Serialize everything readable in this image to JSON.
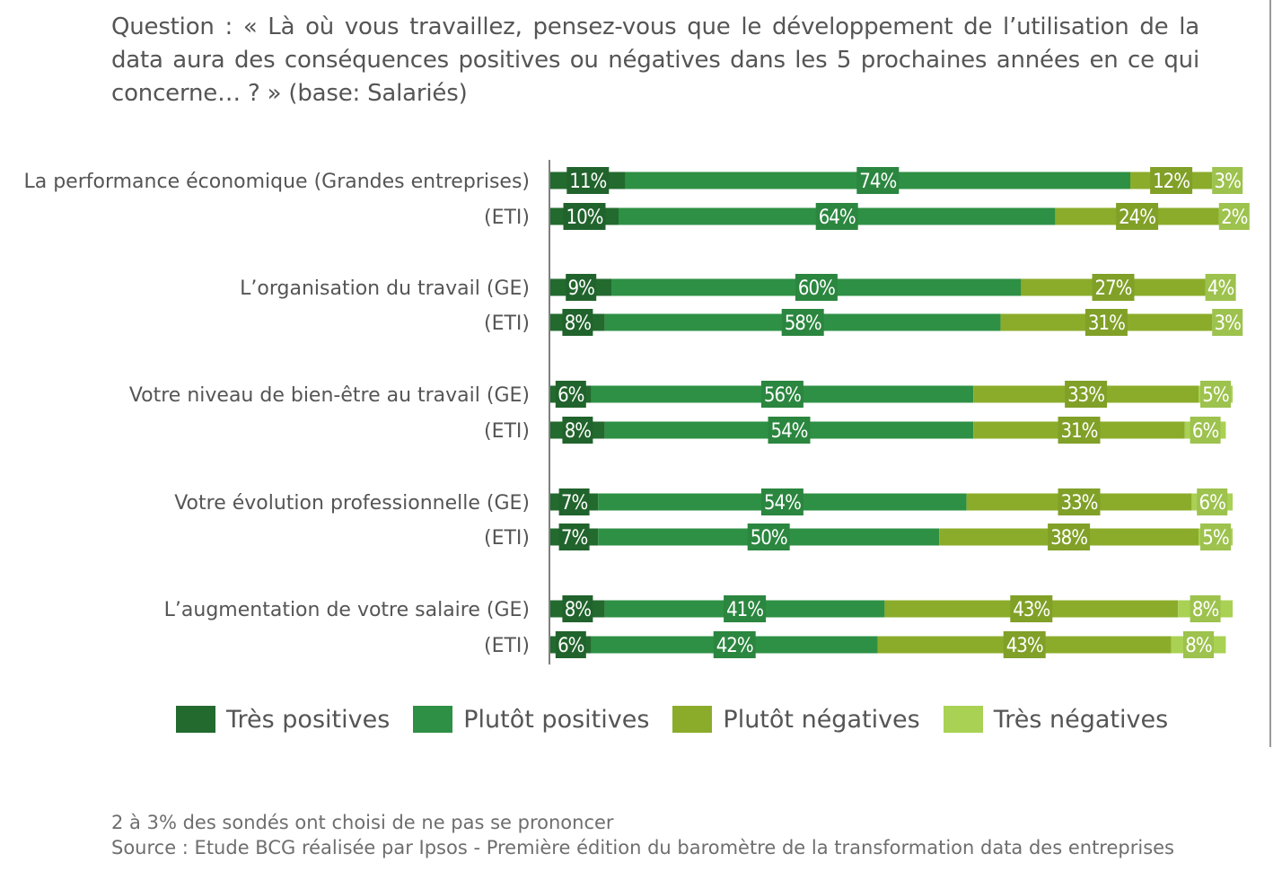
{
  "question": "Question : « Là où vous travaillez, pensez-vous que le développement de l’utilisation de la data aura des conséquences positives ou négatives dans les 5 prochaines années en ce qui concerne… ? » (base: Salariés)",
  "footnote": "2 à 3% des sondés ont choisi de ne pas se prononcer",
  "source": "Source : Etude BCG réalisée par Ipsos - Première édition du baromètre de la transformation data des entreprises",
  "chart_data": {
    "type": "bar",
    "orientation": "horizontal-stacked",
    "unit": "%",
    "categories": [
      "La performance économique (Grandes entreprises)",
      "(ETI)",
      "L’organisation du travail (GE)",
      "(ETI)",
      "Votre niveau de bien-être au travail (GE)",
      "(ETI)",
      "Votre évolution professionnelle (GE)",
      "(ETI)",
      "L’augmentation de votre salaire (GE)",
      "(ETI)"
    ],
    "series": [
      {
        "name": "Très positives",
        "color": "#236a2f",
        "values": [
          11,
          10,
          9,
          8,
          6,
          8,
          7,
          7,
          8,
          6
        ]
      },
      {
        "name": "Plutôt positives",
        "color": "#2e9044",
        "values": [
          74,
          64,
          60,
          58,
          56,
          54,
          54,
          50,
          41,
          42
        ]
      },
      {
        "name": "Plutôt négatives",
        "color": "#8bac2a",
        "values": [
          12,
          24,
          27,
          31,
          33,
          31,
          33,
          38,
          43,
          43
        ]
      },
      {
        "name": "Très négatives",
        "color": "#a9d153",
        "values": [
          3,
          2,
          4,
          3,
          5,
          6,
          6,
          5,
          8,
          8
        ]
      }
    ],
    "legend_position": "bottom",
    "grid": false
  }
}
